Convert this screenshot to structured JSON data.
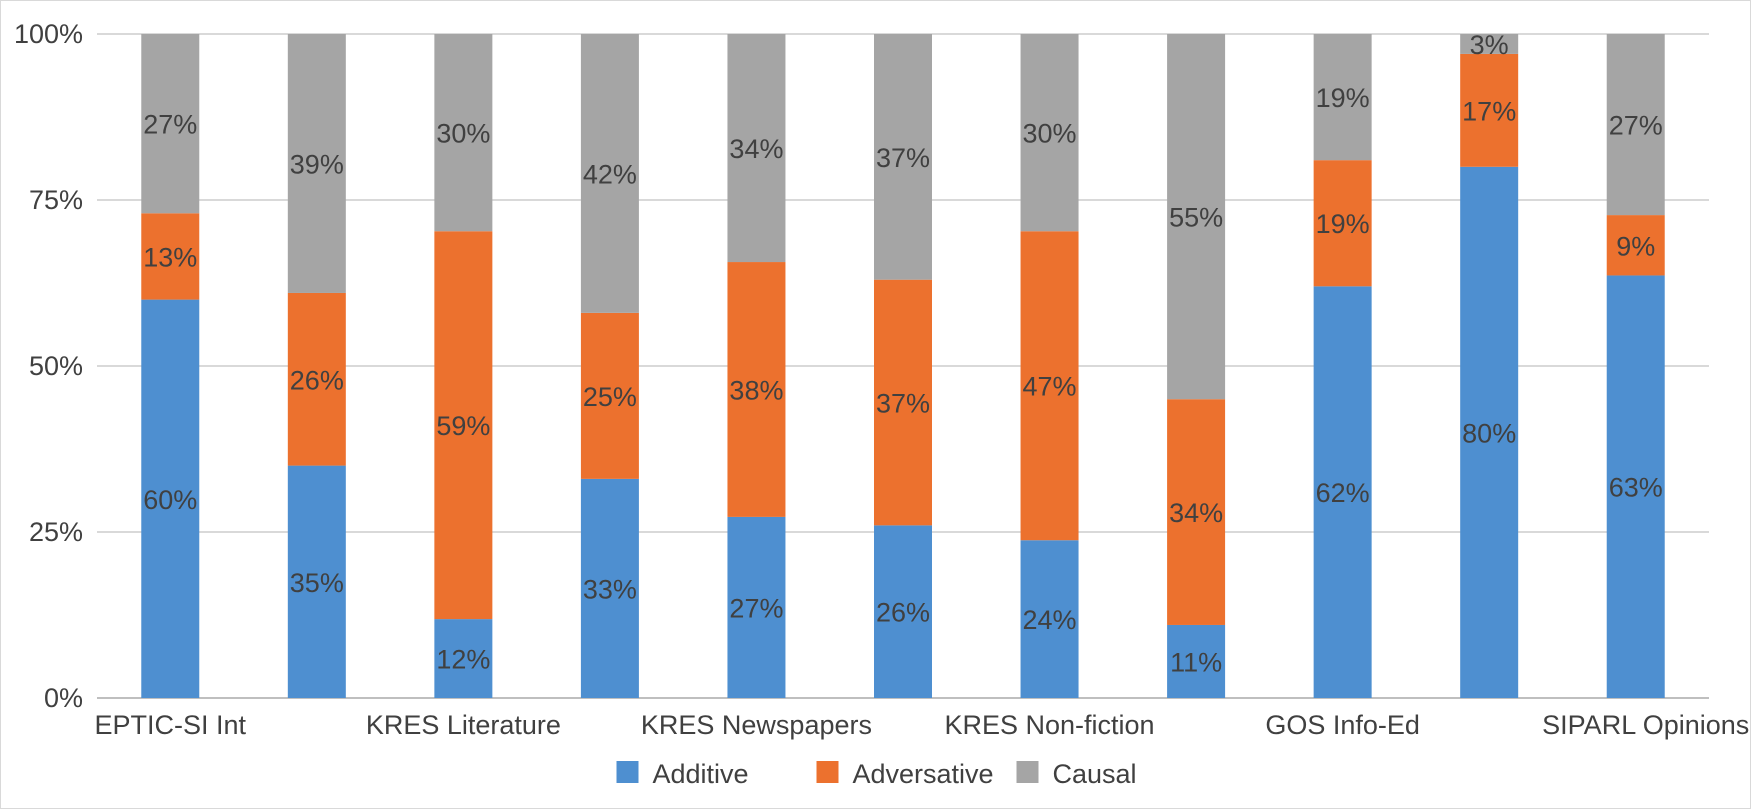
{
  "chart_data": {
    "type": "bar",
    "stacked": true,
    "percent_stacked": true,
    "categories": [
      "EPTIC-SI Int",
      "",
      "KRES Literature",
      "",
      "KRES Newspapers",
      "",
      "KRES Non-fiction",
      "",
      "GOS Info-Ed",
      "",
      "SIPARL Opinions"
    ],
    "series": [
      {
        "name": "Additive",
        "color": "#4e8fd0",
        "values": [
          60,
          35,
          12,
          33,
          27,
          26,
          24,
          11,
          62,
          80,
          63
        ],
        "labels": [
          "60%",
          "35%",
          "12%",
          "33%",
          "27%",
          "26%",
          "24%",
          "11%",
          "62%",
          "80%",
          "63%"
        ]
      },
      {
        "name": "Adversative",
        "color": "#ec712e",
        "values": [
          13,
          26,
          59,
          25,
          38,
          37,
          47,
          34,
          19,
          17,
          9
        ],
        "labels": [
          "13%",
          "26%",
          "59%",
          "25%",
          "38%",
          "37%",
          "47%",
          "34%",
          "19%",
          "17%",
          "9%"
        ]
      },
      {
        "name": "Causal",
        "color": "#a5a5a5",
        "values": [
          27,
          39,
          30,
          42,
          34,
          37,
          30,
          55,
          19,
          3,
          27
        ],
        "labels": [
          "27%",
          "39%",
          "30%",
          "42%",
          "34%",
          "37%",
          "30%",
          "55%",
          "19%",
          "3%",
          "27%"
        ]
      }
    ],
    "y_ticks": [
      "0%",
      "25%",
      "50%",
      "75%",
      "100%"
    ],
    "ylim": [
      0,
      100
    ],
    "grid": true,
    "legend_position": "bottom"
  }
}
